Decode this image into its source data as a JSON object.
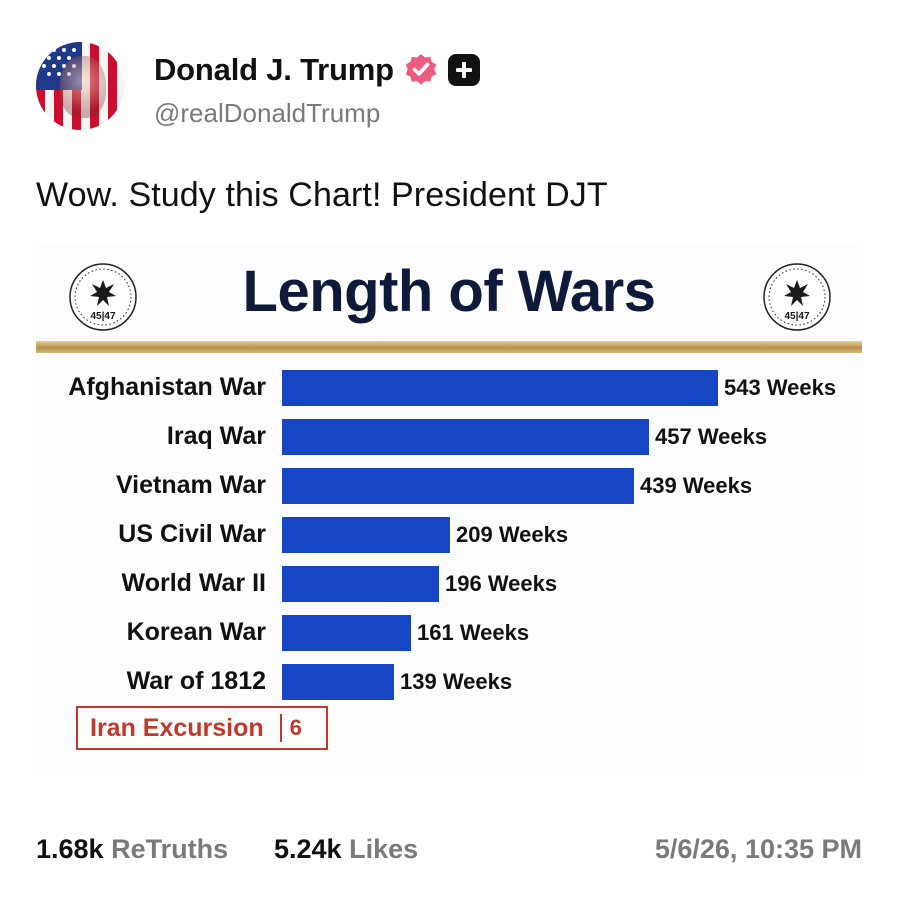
{
  "post": {
    "display_name": "Donald J. Trump",
    "handle": "@realDonaldTrump",
    "text": "Wow. Study this Chart! President DJT",
    "colors": {
      "verified": "#ec5c7e",
      "bar": "#1746c4",
      "highlight": "#c0392b",
      "gold": "#b8924a"
    }
  },
  "seal": {
    "number_text": "45|47"
  },
  "chart_data": {
    "type": "bar",
    "orientation": "horizontal",
    "title": "Length of Wars",
    "categories": [
      "Afghanistan War",
      "Iraq War",
      "Vietnam War",
      "US Civil War",
      "World War II",
      "Korean War",
      "War of 1812"
    ],
    "values": [
      543,
      457,
      439,
      209,
      196,
      161,
      139
    ],
    "value_labels": [
      "543 Weeks",
      "457 Weeks",
      "439 Weeks",
      "209 Weeks",
      "196 Weeks",
      "161 Weeks",
      "139 Weeks"
    ],
    "xlim": [
      0,
      543
    ],
    "grid": false,
    "highlight": {
      "label": "Iran Excursion",
      "value": 6,
      "value_label": "6"
    }
  },
  "footer": {
    "retruths_count": "1.68k",
    "retruths_label": "ReTruths",
    "likes_count": "5.24k",
    "likes_label": "Likes",
    "timestamp": "5/6/26, 10:35 PM"
  }
}
